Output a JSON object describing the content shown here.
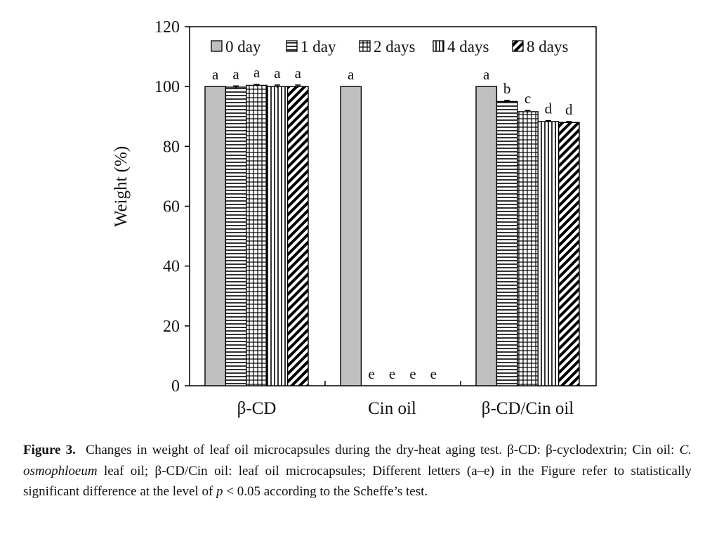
{
  "chart_data": {
    "type": "bar",
    "ylabel": "Weight (%)",
    "xlabel": "",
    "ylim": [
      0,
      120
    ],
    "yticks": [
      0,
      20,
      40,
      60,
      80,
      100,
      120
    ],
    "grid": false,
    "legend_position": "top",
    "categories": [
      "β-CD",
      "Cin oil",
      "β-CD/Cin oil"
    ],
    "series": [
      {
        "name": "0 day",
        "pattern": "solid-gray",
        "values": [
          100,
          100,
          100
        ],
        "errors": [
          0,
          0,
          0
        ],
        "labels": [
          "a",
          "a",
          "a"
        ]
      },
      {
        "name": "1 day",
        "pattern": "horizontal-lines",
        "values": [
          99.8,
          0,
          95
        ],
        "errors": [
          0.4,
          0,
          0.4
        ],
        "labels": [
          "a",
          "e",
          "b"
        ]
      },
      {
        "name": "2 days",
        "pattern": "grid",
        "values": [
          100.4,
          0,
          91.6
        ],
        "errors": [
          0.3,
          0,
          0.4
        ],
        "labels": [
          "a",
          "e",
          "c"
        ]
      },
      {
        "name": "4 days",
        "pattern": "vertical-lines",
        "values": [
          100,
          0,
          88.3
        ],
        "errors": [
          0.5,
          0,
          0.3
        ],
        "labels": [
          "a",
          "e",
          "d"
        ]
      },
      {
        "name": "8 days",
        "pattern": "diagonal-lines",
        "values": [
          100,
          0,
          88
        ],
        "errors": [
          0.5,
          0,
          0.3
        ],
        "labels": [
          "a",
          "e",
          "d"
        ]
      }
    ]
  },
  "caption": {
    "label": "Figure 3.",
    "p1": "Changes in weight of leaf oil microcapsules during the dry-heat aging test.  β-CD: β-cyclodextrin; Cin oil: ",
    "species": "C. osmophloeum",
    "p2": " leaf oil; β-CD/Cin oil: leaf oil microcapsules; Different letters (a–e) in the Figure refer to statistically significant difference at the level of ",
    "pvar": "p",
    "p3": " < 0.05 according to the Scheffe’s test."
  }
}
